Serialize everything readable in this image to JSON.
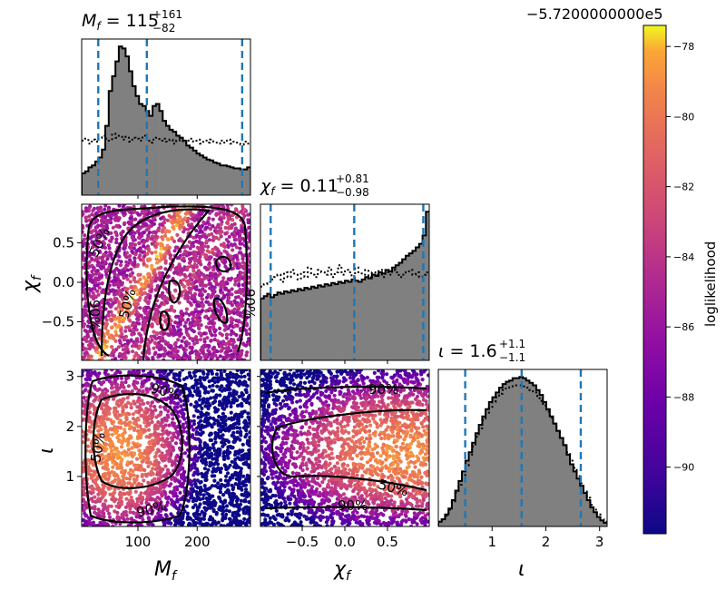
{
  "figure": {
    "title_mf": "M_f = 115 (+161, -82)",
    "title_chif": "χ_f = 0.11 (+0.81, -0.98)",
    "title_iota": "ι = 1.6 (+1.1, -1.1)",
    "offset_text": "−5.7200000000e5",
    "colorbar_label": "loglikelihood"
  },
  "chart_data": {
    "type": "scatter",
    "subtype": "corner-plot",
    "parameters": [
      {
        "name": "M_f",
        "label": "M_f",
        "range": [
          5,
          290
        ],
        "ticks": [
          100,
          200
        ],
        "median": 115,
        "plus": 161,
        "minus": 82,
        "quantile_lines": [
          33,
          115,
          276
        ]
      },
      {
        "name": "chi_f",
        "label": "χ_f",
        "range": [
          -0.99,
          0.99
        ],
        "ticks": [
          -0.5,
          0.0,
          0.5
        ],
        "median": 0.11,
        "plus": 0.81,
        "minus": 0.98,
        "quantile_lines": [
          -0.87,
          0.11,
          0.92
        ]
      },
      {
        "name": "iota",
        "label": "ι",
        "range": [
          0.0,
          3.14
        ],
        "ticks": [
          1,
          2,
          3
        ],
        "median": 1.6,
        "plus": 1.1,
        "minus": 1.1,
        "quantile_lines": [
          0.5,
          1.55,
          2.65
        ]
      }
    ],
    "tick_labels": {
      "mf_x": [
        "100",
        "200"
      ],
      "chif_x": [
        "−0.5",
        "0.0",
        "0.5"
      ],
      "chif_y": [
        "0.5",
        "0.0",
        "−0.5"
      ],
      "iota_x": [
        "1",
        "2",
        "3"
      ],
      "iota_y": [
        "3",
        "2",
        "1"
      ]
    },
    "contour_labels": [
      "50%",
      "90%"
    ],
    "colorbar": {
      "cmap": "plasma",
      "range": [
        -91.9,
        -77.4
      ],
      "ticks": [
        -78,
        -80,
        -82,
        -84,
        -86,
        -88,
        -90
      ],
      "tick_labels": [
        "−78",
        "−80",
        "−82",
        "−84",
        "−86",
        "−88",
        "−90"
      ],
      "offset": -572000
    },
    "histograms": {
      "mf": {
        "bin_edges_start": 5,
        "bin_width": 5.7,
        "weighted": [
          22,
          24,
          28,
          30,
          34,
          38,
          46,
          70,
          105,
          120,
          135,
          150,
          148,
          140,
          125,
          110,
          100,
          92,
          90,
          85,
          80,
          90,
          92,
          85,
          75,
          70,
          66,
          64,
          60,
          58,
          55,
          50,
          48,
          45,
          42,
          40,
          38,
          36,
          35,
          33,
          32,
          30,
          30,
          29,
          28,
          27,
          27,
          26,
          26,
          28
        ],
        "prior": [
          55,
          57,
          52,
          56,
          54,
          58,
          60,
          57,
          55,
          62,
          58,
          60,
          56,
          59,
          54,
          58,
          57,
          55,
          60,
          57,
          53,
          56,
          58,
          55,
          57,
          54,
          56,
          52,
          55,
          58,
          53,
          55,
          57,
          54,
          56,
          52,
          55,
          53,
          56,
          54,
          52,
          55,
          53,
          56,
          52,
          54,
          53,
          51,
          54,
          52
        ]
      },
      "chif": {
        "bin_edges_start": -0.99,
        "bin_width": 0.0396,
        "weighted": [
          52,
          54,
          56,
          53,
          55,
          57,
          56,
          58,
          57,
          59,
          58,
          60,
          59,
          61,
          60,
          62,
          61,
          63,
          62,
          64,
          63,
          65,
          64,
          66,
          65,
          67,
          66,
          68,
          67,
          66,
          68,
          70,
          69,
          72,
          71,
          74,
          73,
          76,
          75,
          78,
          80,
          82,
          85,
          88,
          90,
          92,
          95,
          98,
          105,
          125
        ],
        "prior": [
          62,
          64,
          66,
          68,
          70,
          72,
          66,
          74,
          70,
          76,
          72,
          68,
          74,
          70,
          78,
          72,
          70,
          76,
          74,
          72,
          78,
          70,
          74,
          80,
          72,
          76,
          74,
          70,
          78,
          74,
          72,
          76,
          70,
          74,
          72,
          76,
          70,
          74,
          72,
          76,
          74,
          70,
          72,
          74,
          76,
          72,
          74,
          70,
          72,
          74
        ]
      },
      "iota": {
        "bin_edges_start": 0.0,
        "bin_width": 0.0628,
        "weighted": [
          4,
          6,
          10,
          15,
          22,
          30,
          38,
          46,
          55,
          62,
          70,
          78,
          85,
          92,
          98,
          104,
          108,
          112,
          116,
          119,
          121,
          122,
          124,
          124,
          125,
          124,
          122,
          120,
          118,
          114,
          110,
          104,
          98,
          92,
          86,
          80,
          74,
          68,
          60,
          52,
          46,
          40,
          34,
          28,
          22,
          16,
          12,
          8,
          5,
          3
        ],
        "prior": [
          4,
          6,
          9,
          14,
          20,
          28,
          35,
          43,
          51,
          59,
          67,
          75,
          82,
          89,
          95,
          100,
          104,
          108,
          111,
          114,
          116,
          117,
          118,
          118,
          118,
          117,
          116,
          114,
          112,
          109,
          105,
          101,
          96,
          91,
          86,
          80,
          74,
          68,
          62,
          55,
          49,
          42,
          36,
          30,
          24,
          18,
          14,
          10,
          6,
          4
        ]
      }
    }
  }
}
